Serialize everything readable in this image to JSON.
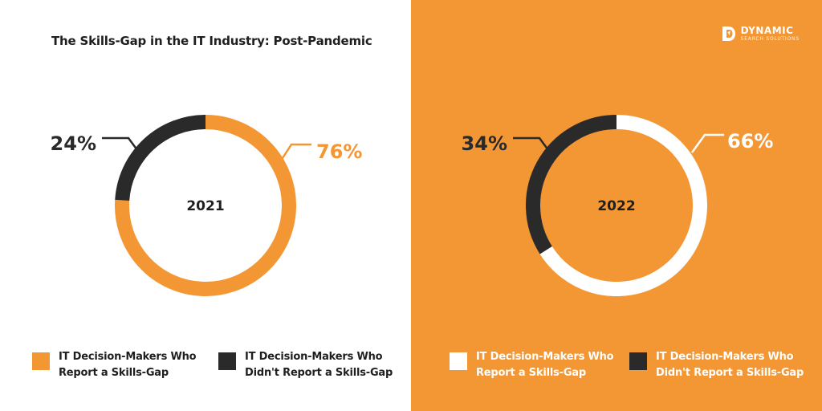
{
  "title": "The Skills-Gap in the IT Industry: Post-Pandemic",
  "logo": {
    "name": "DYNAMIC",
    "sub": "SEARCH SOLUTIONS"
  },
  "colors": {
    "orange": "#f39634",
    "dark": "#2a2a2a",
    "white": "#ffffff"
  },
  "chart_data": [
    {
      "type": "pie",
      "variant": "donut",
      "center_label": "2021",
      "slices": [
        {
          "label": "IT Decision-Makers Who Report a Skills-Gap",
          "value": 76,
          "display": "76%",
          "color": "#f39634"
        },
        {
          "label": "IT Decision-Makers Who Didn't Report a Skills-Gap",
          "value": 24,
          "display": "24%",
          "color": "#2a2a2a"
        }
      ],
      "legend": [
        {
          "label": "IT Decision-Makers Who\nReport a Skills-Gap",
          "color": "#f39634"
        },
        {
          "label": "IT Decision-Makers Who\nDidn't Report a Skills-Gap",
          "color": "#2a2a2a"
        }
      ]
    },
    {
      "type": "pie",
      "variant": "donut",
      "center_label": "2022",
      "slices": [
        {
          "label": "IT Decision-Makers Who Report a Skills-Gap",
          "value": 66,
          "display": "66%",
          "color": "#ffffff"
        },
        {
          "label": "IT Decision-Makers Who Didn't Report a Skills-Gap",
          "value": 34,
          "display": "34%",
          "color": "#2a2a2a"
        }
      ],
      "legend": [
        {
          "label": "IT Decision-Makers Who\nReport a Skills-Gap",
          "color": "#ffffff"
        },
        {
          "label": "IT Decision-Makers Who\nDidn't Report a Skills-Gap",
          "color": "#2a2a2a"
        }
      ]
    }
  ]
}
